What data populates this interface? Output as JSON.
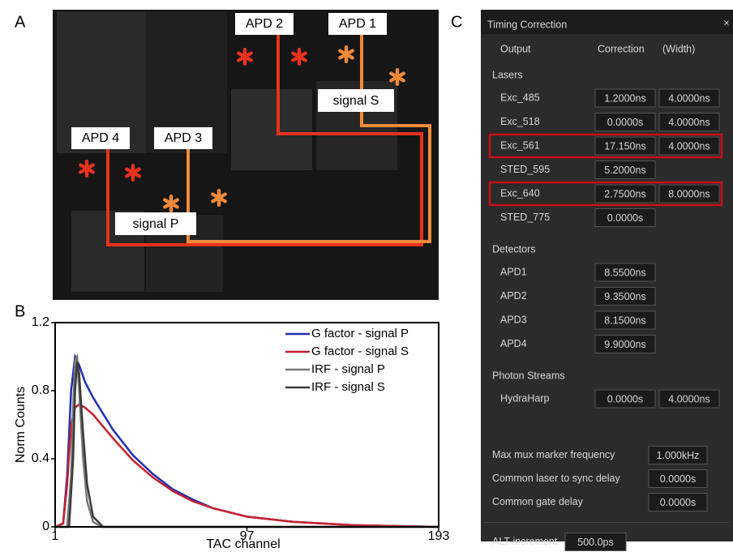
{
  "panel_labels": [
    "A",
    "B",
    "C"
  ],
  "photo": {
    "labels": [
      "APD 2",
      "APD 1",
      "APD 4",
      "APD 3",
      "signal S",
      "signal P"
    ]
  },
  "chart_data": {
    "type": "line",
    "x_label": "TAC channel",
    "y_label": "Norm Counts",
    "xlim": [
      1,
      193
    ],
    "xticks": [
      1,
      97,
      193
    ],
    "ylim": [
      0,
      1.2
    ],
    "yticks": [
      0,
      0.4,
      0.8,
      1.2
    ],
    "legend": "upper right",
    "series": [
      {
        "name": "G factor - signal  P",
        "color": "#1f2fb4",
        "x": [
          1,
          5,
          7,
          9,
          11,
          13,
          16,
          20,
          30,
          40,
          50,
          60,
          70,
          80,
          97,
          120,
          150,
          193
        ],
        "values": [
          0,
          0.02,
          0.3,
          0.8,
          1.0,
          0.95,
          0.85,
          0.76,
          0.57,
          0.42,
          0.31,
          0.22,
          0.16,
          0.11,
          0.06,
          0.03,
          0.01,
          0
        ]
      },
      {
        "name": "G factor - signal  S",
        "color": "#c8202a",
        "x": [
          1,
          5,
          7,
          9,
          11,
          13,
          16,
          20,
          30,
          40,
          50,
          60,
          70,
          80,
          97,
          120,
          150,
          193
        ],
        "values": [
          0,
          0.02,
          0.25,
          0.6,
          0.7,
          0.72,
          0.7,
          0.66,
          0.52,
          0.39,
          0.29,
          0.21,
          0.15,
          0.11,
          0.06,
          0.03,
          0.01,
          0
        ]
      },
      {
        "name": "IRF - signal  P",
        "color": "#777777",
        "x": [
          1,
          7,
          9,
          10,
          11,
          12,
          13,
          15,
          17,
          20,
          24,
          193
        ],
        "values": [
          0,
          0,
          0.3,
          0.7,
          0.98,
          1.0,
          0.8,
          0.4,
          0.15,
          0.03,
          0,
          0
        ]
      },
      {
        "name": "IRF - signal  S",
        "color": "#3a3a3a",
        "x": [
          1,
          8,
          10,
          11,
          12,
          13,
          15,
          17,
          20,
          25,
          193
        ],
        "values": [
          0,
          0,
          0.4,
          0.8,
          0.97,
          0.9,
          0.55,
          0.25,
          0.06,
          0,
          0
        ]
      }
    ]
  },
  "timing_panel": {
    "title": "Timing Correction",
    "close": "×",
    "headers": [
      "Output",
      "Correction",
      "(Width)"
    ],
    "sections": [
      {
        "name": "Lasers",
        "rows": [
          {
            "label": "Exc_485",
            "correction": "1.2000ns",
            "width": "4.0000ns"
          },
          {
            "label": "Exc_518",
            "correction": "0.0000s",
            "width": "4.0000ns"
          },
          {
            "label": "Exc_561",
            "correction": "17.150ns",
            "width": "4.0000ns",
            "highlighted": true
          },
          {
            "label": "STED_595",
            "correction": "5.2000ns"
          },
          {
            "label": "Exc_640",
            "correction": "2.7500ns",
            "width": "8.0000ns",
            "highlighted": true
          },
          {
            "label": "STED_775",
            "correction": "0.0000s"
          }
        ]
      },
      {
        "name": "Detectors",
        "rows": [
          {
            "label": "APD1",
            "correction": "8.5500ns"
          },
          {
            "label": "APD2",
            "correction": "9.3500ns"
          },
          {
            "label": "APD3",
            "correction": "8.1500ns"
          },
          {
            "label": "APD4",
            "correction": "9.9000ns"
          }
        ]
      },
      {
        "name": "Photon Streams",
        "rows": [
          {
            "label": "HydraHarp",
            "correction": "0.0000s",
            "width": "4.0000ns"
          }
        ]
      }
    ],
    "settings": [
      {
        "label": "Max mux marker frequency",
        "value": "1.000kHz"
      },
      {
        "label": "Common laser to sync delay",
        "value": "0.0000s"
      },
      {
        "label": "Common gate delay",
        "value": "0.0000s"
      }
    ],
    "alt": {
      "label": "ALT-increment",
      "value": "500.0ps"
    }
  }
}
